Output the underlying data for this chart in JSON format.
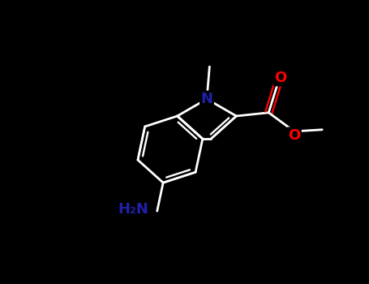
{
  "background_color": "#000000",
  "bond_color": "#ffffff",
  "N_color": "#2020aa",
  "O_color": "#ff0000",
  "NH2_label": "H₂N",
  "N_label": "N",
  "O_label": "O",
  "figsize": [
    4.55,
    3.5
  ],
  "dpi": 100,
  "xlim": [
    0,
    4.55
  ],
  "ylim": [
    0,
    3.5
  ]
}
